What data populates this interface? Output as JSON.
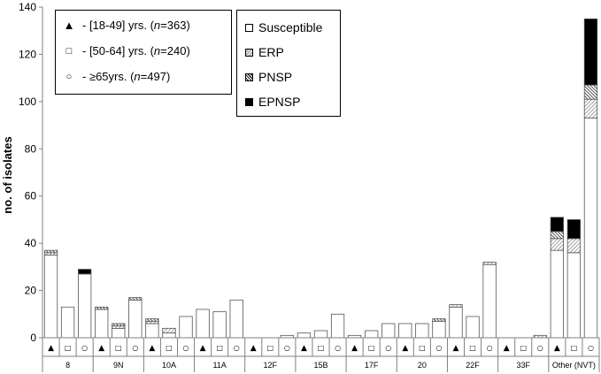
{
  "chart_data": {
    "type": "bar",
    "stacked": true,
    "ylabel": "no. of isolates",
    "xlabel": "",
    "ylim": [
      0,
      140
    ],
    "yticks": [
      0,
      20,
      40,
      60,
      80,
      100,
      120,
      140
    ],
    "grid": false,
    "serotypes": [
      "8",
      "9N",
      "10A",
      "11A",
      "12F",
      "15B",
      "17F",
      "20",
      "22F",
      "33F",
      "Other (NVT)"
    ],
    "age_group_markers": [
      "▲",
      "□",
      "○"
    ],
    "age_groups": [
      {
        "marker": "▲",
        "text_before": " - [18-49] yrs. (",
        "n_label": "n",
        "text_after": "=363)"
      },
      {
        "marker": "□",
        "text_before": " - [50-64] yrs. (",
        "n_label": "n",
        "text_after": "=240)"
      },
      {
        "marker": "○",
        "text_before": " - ≥65yrs. (",
        "n_label": "n",
        "text_after": "=497)"
      }
    ],
    "legend_placement": "top-left",
    "series": [
      {
        "name": "Susceptible",
        "values": [
          35,
          13,
          27,
          12,
          4,
          16,
          6,
          2,
          9,
          12,
          11,
          16,
          0,
          0,
          1,
          2,
          3,
          10,
          1,
          3,
          6,
          6,
          6,
          7,
          13,
          9,
          31,
          0,
          0,
          0,
          37,
          36,
          93
        ]
      },
      {
        "name": "ERP",
        "values": [
          1,
          0,
          0,
          0,
          1,
          0,
          1,
          2,
          0,
          0,
          0,
          0,
          0,
          0,
          0,
          0,
          0,
          0,
          0,
          0,
          0,
          0,
          0,
          0,
          1,
          0,
          1,
          0,
          0,
          1,
          5,
          6,
          8
        ]
      },
      {
        "name": "PNSP",
        "values": [
          1,
          0,
          0,
          1,
          1,
          1,
          1,
          0,
          0,
          0,
          0,
          0,
          0,
          0,
          0,
          0,
          0,
          0,
          0,
          0,
          0,
          0,
          0,
          1,
          0,
          0,
          0,
          0,
          0,
          0,
          3,
          0,
          6
        ]
      },
      {
        "name": "EPNSP",
        "values": [
          0,
          0,
          2,
          0,
          0,
          0,
          0,
          0,
          0,
          0,
          0,
          0,
          0,
          0,
          0,
          0,
          0,
          0,
          0,
          0,
          0,
          0,
          0,
          0,
          0,
          0,
          0,
          0,
          0,
          0,
          6,
          8,
          28
        ]
      }
    ]
  }
}
